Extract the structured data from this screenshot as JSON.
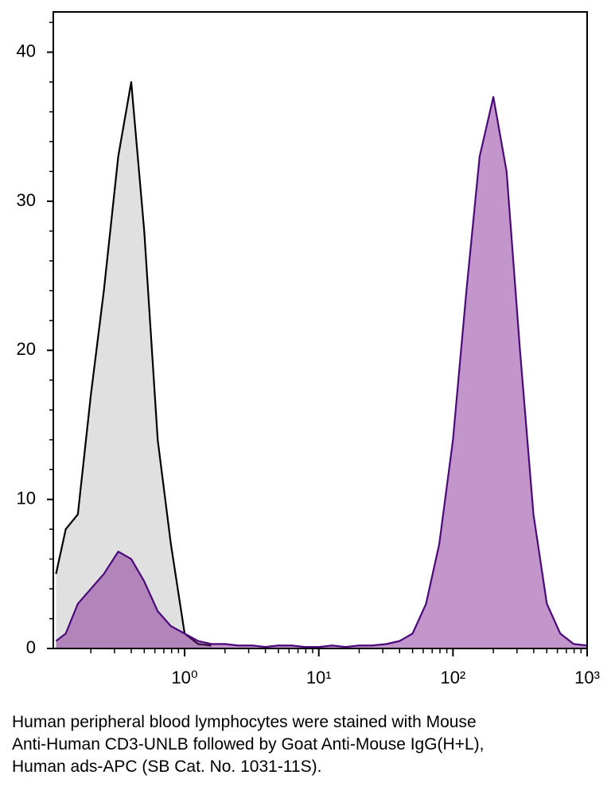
{
  "chart_data": {
    "type": "area",
    "x": [
      0.11,
      0.13,
      0.16,
      0.2,
      0.25,
      0.32,
      0.4,
      0.5,
      0.63,
      0.79,
      1.0,
      1.26,
      1.58,
      2,
      2.5,
      3.2,
      4,
      5,
      6.3,
      7.9,
      10,
      12.6,
      15.8,
      20,
      25,
      32,
      40,
      50,
      63,
      79,
      100,
      126,
      158,
      200,
      251,
      316,
      398,
      501,
      631,
      794,
      1000
    ],
    "series": [
      {
        "color": "#000000",
        "fill": "#e0e0e0",
        "values": [
          5,
          8,
          9,
          17,
          24,
          33,
          38,
          28,
          14,
          7,
          1,
          0.3,
          0.2,
          null,
          null,
          null,
          null,
          null,
          null,
          null,
          null,
          null,
          null,
          null,
          null,
          null,
          null,
          null,
          null,
          null,
          null,
          null,
          null,
          null,
          null,
          null,
          null,
          null,
          null,
          null,
          null
        ]
      },
      {
        "color": "#4b0a7a",
        "fill": "rgba(120,20,140,0.45)",
        "values": [
          0.5,
          1,
          3,
          4,
          5,
          6.5,
          6,
          4.5,
          2.5,
          1.5,
          1,
          0.5,
          0.3,
          0.3,
          0.2,
          0.2,
          0.1,
          0.2,
          0.2,
          0.1,
          0.1,
          0.2,
          0.1,
          0.2,
          0.2,
          0.3,
          0.5,
          1,
          3,
          7,
          14,
          24,
          33,
          37,
          32,
          20,
          9,
          3,
          1,
          0.3,
          0.2
        ]
      }
    ],
    "xlog": true,
    "xlim": [
      0.105,
      1000
    ],
    "xticks": [
      {
        "value": 1,
        "label": "10⁰"
      },
      {
        "value": 10,
        "label": "10¹"
      },
      {
        "value": 100,
        "label": "10²"
      },
      {
        "value": 1000,
        "label": "10³"
      }
    ],
    "xminor": [
      0.2,
      0.3,
      0.4,
      0.5,
      0.6,
      0.7,
      0.8,
      0.9,
      2,
      3,
      4,
      5,
      6,
      7,
      8,
      9,
      20,
      30,
      40,
      50,
      60,
      70,
      80,
      90,
      200,
      300,
      400,
      500,
      600,
      700,
      800,
      900
    ],
    "ylim": [
      0,
      42.7
    ],
    "yticks": [
      0,
      10,
      20,
      30,
      40
    ],
    "yminor": [
      2,
      4,
      6,
      8,
      12,
      14,
      16,
      18,
      22,
      24,
      26,
      28,
      32,
      34,
      36,
      38,
      42
    ],
    "caption": "Human peripheral blood lymphocytes were stained with Mouse Anti-Human CD3-UNLB followed by Goat Anti-Mouse IgG(H+L), Human ads-APC (SB Cat. No. 1031-11S)."
  }
}
